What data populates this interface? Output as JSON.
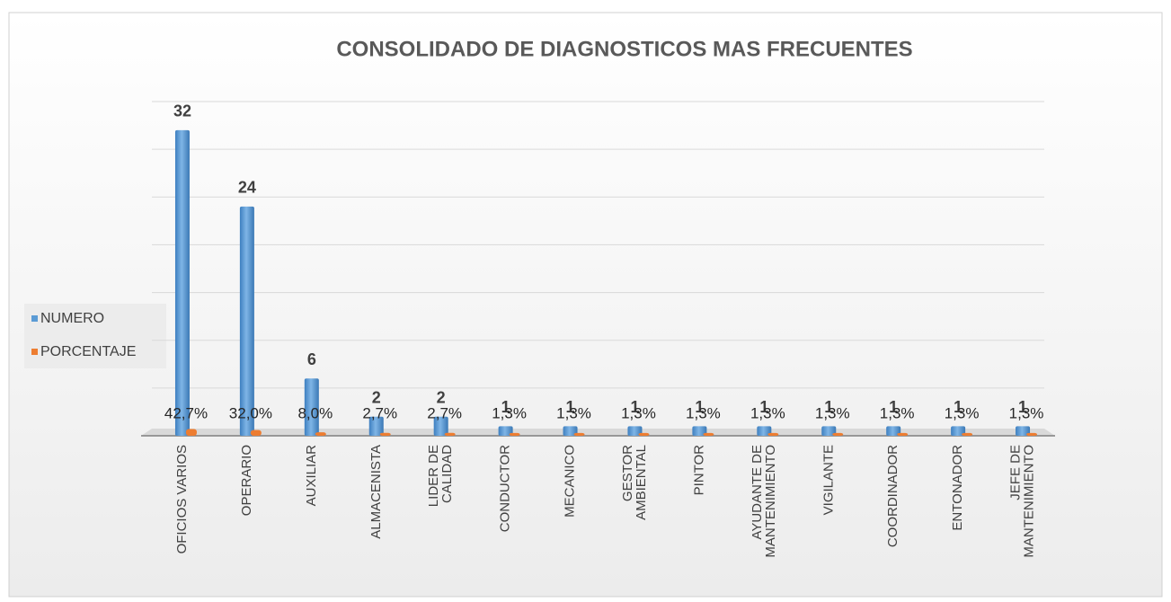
{
  "chart_data": {
    "type": "bar3d",
    "title": "CONSOLIDADO DE DIAGNOSTICOS MAS FRECUENTES",
    "categories": [
      "OFICIOS VARIOS",
      "OPERARIO",
      "AUXILIAR",
      "ALMACENISTA",
      "LIDER DE CALIDAD",
      "CONDUCTOR",
      "MECANICO",
      "GESTOR AMBIENTAL",
      "PINTOR",
      "AYUDANTE DE MANTENIMIENTO",
      "VIGILANTE",
      "COORDINADOR",
      "ENTONADOR",
      "JEFE DE MANTENIMIENTO"
    ],
    "series": [
      {
        "name": "NUMERO",
        "color": "#5b9bd5",
        "values": [
          32,
          24,
          6,
          2,
          2,
          1,
          1,
          1,
          1,
          1,
          1,
          1,
          1,
          1
        ]
      },
      {
        "name": "PORCENTAJE",
        "color": "#ed7d31",
        "values": [
          0.427,
          0.32,
          0.08,
          0.027,
          0.027,
          0.013,
          0.013,
          0.013,
          0.013,
          0.013,
          0.013,
          0.013,
          0.013,
          0.013
        ],
        "value_labels": [
          "42,7%",
          "32,0%",
          "8,0%",
          "2,7%",
          "2,7%",
          "1,3%",
          "1,3%",
          "1,3%",
          "1,3%",
          "1,3%",
          "1,3%",
          "1,3%",
          "1,3%",
          "1,3%"
        ]
      }
    ],
    "ylim": [
      0,
      35
    ],
    "yticks": [
      0,
      5,
      10,
      15,
      20,
      25,
      30,
      35
    ],
    "grid": true,
    "legend": "left"
  }
}
